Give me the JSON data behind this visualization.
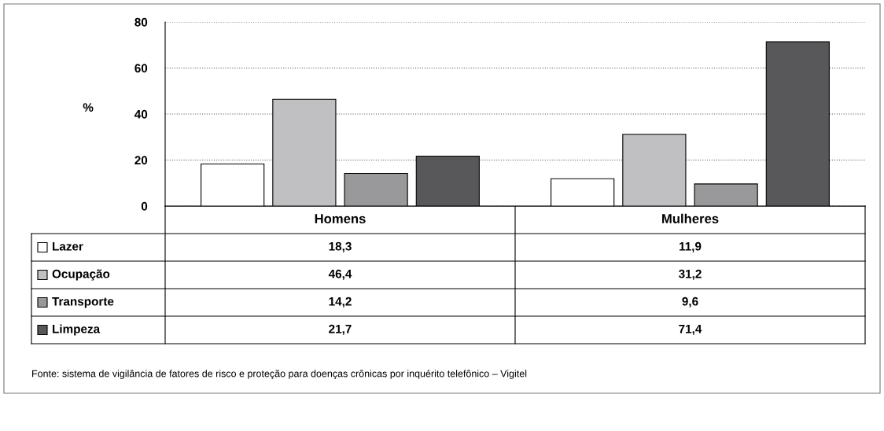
{
  "chart_data": {
    "type": "bar",
    "ylabel": "%",
    "categories": [
      "Homens",
      "Mulheres"
    ],
    "series": [
      {
        "name": "Lazer",
        "color": "#ffffff",
        "values": [
          18.3,
          11.9
        ],
        "value_labels": [
          "18,3",
          "11,9"
        ]
      },
      {
        "name": "Ocupação",
        "color": "#c0c0c2",
        "values": [
          46.4,
          31.2
        ],
        "value_labels": [
          "46,4",
          "31,2"
        ]
      },
      {
        "name": "Transporte",
        "color": "#99999b",
        "values": [
          14.2,
          9.6
        ],
        "value_labels": [
          "14,2",
          "9,6"
        ]
      },
      {
        "name": "Limpeza",
        "color": "#58585a",
        "values": [
          21.7,
          71.4
        ],
        "value_labels": [
          "21,7",
          "71,4"
        ]
      }
    ],
    "ylim": [
      0,
      80
    ],
    "yticks": [
      0,
      20,
      40,
      60,
      80
    ],
    "grid": "y",
    "legend": "bottom",
    "annotations": [
      "Fonte: sistema de vigilância de fatores de risco e proteção para doenças crônicas por inquérito telefônico – Vigitel"
    ]
  }
}
